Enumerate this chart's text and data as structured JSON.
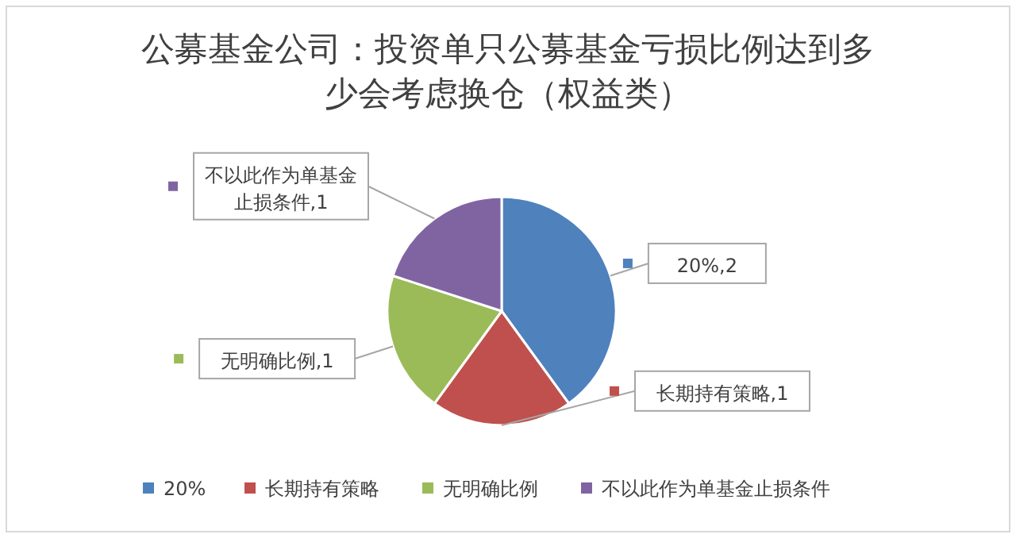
{
  "chart_data": {
    "type": "pie",
    "title": "公募基金公司：投资单只公募基金亏损比例达到多少会考虑换仓（权益类）",
    "categories": [
      "20%",
      "长期持有策略",
      "无明确比例",
      "不以此作为单基金止损条件"
    ],
    "values": [
      2,
      1,
      1,
      1
    ],
    "colors": [
      "#4f81bd",
      "#c0504d",
      "#9bbb59",
      "#8064a2"
    ],
    "value_labels": [
      "20%,2",
      "长期持有策略,1",
      "无明确比例,1",
      "不以此作为单基金止损条件,1"
    ],
    "legend": "bottom"
  }
}
